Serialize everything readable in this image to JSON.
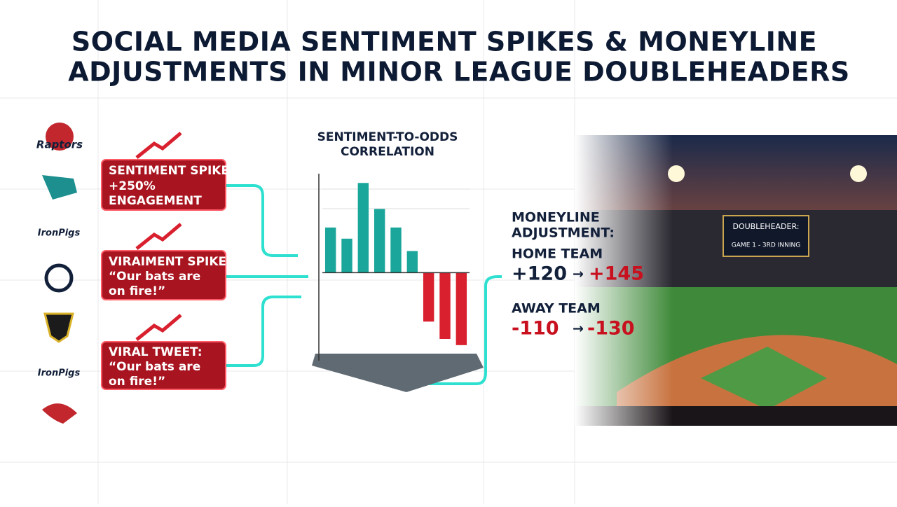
{
  "header": {
    "title": [
      "SOCIAL MEDIA SENTIMENT SPIKES & MONEYLINE",
      "ADJUSTMENTS IN MINOR LEAGUE DOUBLEHEADERS"
    ]
  },
  "logos": [
    "Raptors",
    "IronPigs",
    "IronPigs"
  ],
  "callouts": [
    {
      "lines": [
        "SENTIMENT SPIKE:",
        "+250%",
        "ENGAGEMENT"
      ]
    },
    {
      "lines": [
        "VIRAIMENT SPIKE:",
        "“Our bats are",
        "on fire!”"
      ]
    },
    {
      "lines": [
        "VIRAL TWEET:",
        "“Our bats are",
        "on fire!”"
      ]
    }
  ],
  "chart_data": {
    "type": "bar",
    "title": [
      "SENTIMENT-TO-ODDS",
      "CORRELATION"
    ],
    "categories": [
      null,
      null,
      null,
      null,
      null,
      null,
      null,
      null,
      null
    ],
    "values": [
      73,
      55,
      145,
      103,
      73,
      35,
      -79,
      -107,
      -117
    ],
    "positive_color": "#1aa69a",
    "negative_color": "#d8202e",
    "ylim": [
      -150,
      160
    ],
    "grid": true
  },
  "moneyline": {
    "title": [
      "MONEYLINE",
      "ADJUSTMENT:"
    ],
    "home": {
      "label": "HOME TEAM",
      "from": "+120",
      "arrow": "→",
      "to": "+145"
    },
    "away": {
      "label": "AWAY TEAM",
      "from": "-110",
      "arrow": "→",
      "to": "-130"
    }
  },
  "scoreboard": [
    "DOUBLEHEADER:",
    "GAME 1 - 3RD INNING"
  ]
}
